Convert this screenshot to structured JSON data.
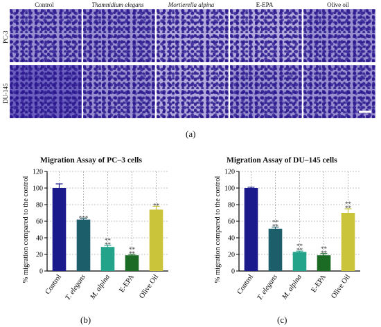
{
  "images": {
    "columns": [
      "Control",
      "Thamnidium elegans",
      "Mortierella alpina",
      "E-EPA",
      "Olive oil"
    ],
    "rows": [
      "PC-3",
      "DU-145"
    ],
    "panel_label": "(a)"
  },
  "chart_data": [
    {
      "type": "bar",
      "title": "Migration Assay of PC–3 cells",
      "ylabel": "% migration compared to the control",
      "xlabel": "",
      "categories": [
        "Control",
        "T. elegans",
        "M. alpina",
        "E-EPA",
        "Olive Oil"
      ],
      "values": [
        100,
        62,
        29,
        19,
        74
      ],
      "errors": [
        5,
        1,
        2,
        1,
        4
      ],
      "significance": [
        "",
        "***",
        "**\n**",
        "**\n**",
        "**"
      ],
      "colors": [
        "#1a1a8c",
        "#1c5f6b",
        "#22a38a",
        "#1b6b25",
        "#c9c43a"
      ],
      "ylim": [
        0,
        120
      ],
      "yticks": [
        0,
        20,
        40,
        60,
        80,
        100,
        120
      ],
      "grid": true,
      "panel_label": "(b)"
    },
    {
      "type": "bar",
      "title": "Migration Assay of DU–145 cells",
      "ylabel": "% migration compared to the control",
      "xlabel": "",
      "categories": [
        "Control",
        "T. elegans",
        "M. alpina",
        "E-EPA",
        "Olive Oil"
      ],
      "values": [
        100,
        51,
        23,
        19,
        70
      ],
      "errors": [
        1,
        2,
        1,
        2,
        5
      ],
      "significance": [
        "",
        "**\n**",
        "**\n**",
        "**\n**",
        "**\n**"
      ],
      "colors": [
        "#1a1a8c",
        "#1c5f6b",
        "#22a38a",
        "#1b6b25",
        "#c9c43a"
      ],
      "ylim": [
        0,
        120
      ],
      "yticks": [
        0,
        20,
        40,
        60,
        80,
        100,
        120
      ],
      "grid": true,
      "panel_label": "(c)"
    }
  ]
}
